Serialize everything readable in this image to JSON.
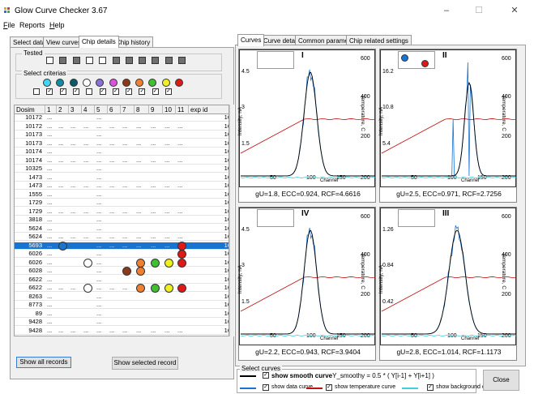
{
  "window": {
    "title": "Glow Curve Checker 3.67",
    "min": "–",
    "max": "☐",
    "close": "✕"
  },
  "menu": [
    {
      "key": "F",
      "rest": "ile"
    },
    {
      "key": "",
      "rest": "Reports"
    },
    {
      "key": "H",
      "rest": "elp"
    }
  ],
  "left_tabs": [
    "Select data",
    "View curves",
    "Chip details",
    "Chip history"
  ],
  "tested": {
    "label": "Tested",
    "states": [
      "empty",
      "filled",
      "filled",
      "empty",
      "empty",
      "filled",
      "filled",
      "filled",
      "filled",
      "filled",
      "filled"
    ]
  },
  "criteria": {
    "label": "Select criterias",
    "colors": [
      "#40d8f0",
      "#148aa4",
      "#0a5a6a",
      "#ffffff",
      "#8870d8",
      "#e050e0",
      "#8a3a1a",
      "#f08030",
      "#40c030",
      "#f0f020",
      "#e01818"
    ],
    "checked": [
      false,
      true,
      true,
      true,
      false,
      true,
      true,
      true,
      true,
      true,
      true
    ]
  },
  "table": {
    "columns": [
      "Dosim",
      "1",
      "2",
      "3",
      "4",
      "5",
      "6",
      "7",
      "8",
      "9",
      "10",
      "11",
      "exp id"
    ],
    "rows": [
      [
        "10172",
        "...",
        "",
        "",
        "",
        "...",
        "",
        "",
        "",
        "",
        "",
        "",
        "16"
      ],
      [
        "10172",
        "...",
        "...",
        "...",
        "...",
        "...",
        "...",
        "...",
        "...",
        "...",
        "...",
        "...",
        "16"
      ],
      [
        "10173",
        "...",
        "",
        "",
        "",
        "...",
        "",
        "",
        "",
        "",
        "",
        "",
        "16"
      ],
      [
        "10173",
        "...",
        "...",
        "...",
        "...",
        "...",
        "...",
        "...",
        "...",
        "...",
        "...",
        "...",
        "16"
      ],
      [
        "10174",
        "...",
        "",
        "",
        "",
        "...",
        "",
        "",
        "",
        "",
        "",
        "",
        "16"
      ],
      [
        "10174",
        "...",
        "...",
        "...",
        "...",
        "...",
        "...",
        "...",
        "...",
        "...",
        "...",
        "...",
        "16"
      ],
      [
        "10325",
        "...",
        "",
        "",
        "",
        "...",
        "",
        "",
        "",
        "",
        "",
        "",
        "16"
      ],
      [
        "1473",
        "...",
        "",
        "",
        "",
        "...",
        "",
        "",
        "",
        "",
        "",
        "",
        "16"
      ],
      [
        "1473",
        "...",
        "...",
        "...",
        "...",
        "...",
        "...",
        "...",
        "...",
        "...",
        "...",
        "...",
        "16"
      ],
      [
        "1555",
        "...",
        "",
        "",
        "",
        "...",
        "",
        "",
        "",
        "",
        "",
        "",
        "16"
      ],
      [
        "1729",
        "...",
        "",
        "",
        "",
        "...",
        "",
        "",
        "",
        "",
        "",
        "",
        "16"
      ],
      [
        "1729",
        "...",
        "...",
        "...",
        "...",
        "...",
        "...",
        "...",
        "...",
        "...",
        "...",
        "...",
        "16"
      ],
      [
        "3818",
        "...",
        "",
        "",
        "",
        "...",
        "",
        "",
        "",
        "",
        "",
        "",
        "16"
      ],
      [
        "5624",
        "...",
        "",
        "",
        "",
        "...",
        "",
        "",
        "",
        "",
        "",
        "",
        "16"
      ],
      [
        "5624",
        "...",
        "...",
        "...",
        "...",
        "...",
        "...",
        "...",
        "...",
        "...",
        "...",
        "...",
        "16"
      ],
      [
        "5693",
        "...",
        "",
        "",
        "",
        "...",
        "...",
        "...",
        "...",
        "...",
        "...",
        "",
        "16"
      ],
      [
        "6026",
        "...",
        "",
        "",
        "",
        "...",
        "",
        "",
        "",
        "",
        "",
        "",
        "16"
      ],
      [
        "6026",
        "...",
        "",
        "",
        "",
        "...",
        "",
        "",
        "",
        "",
        "",
        "",
        "16"
      ],
      [
        "6028",
        "...",
        "",
        "",
        "",
        "...",
        "",
        "",
        "",
        "",
        "",
        "",
        "16"
      ],
      [
        "6622",
        "...",
        "",
        "",
        "",
        "...",
        "",
        "",
        "",
        "",
        "",
        "",
        "16"
      ],
      [
        "6622",
        "...",
        "...",
        "...",
        "",
        "...",
        "...",
        "...",
        "",
        "",
        "",
        "",
        "16"
      ],
      [
        "8263",
        "...",
        "",
        "",
        "",
        "...",
        "",
        "",
        "",
        "",
        "",
        "",
        "16"
      ],
      [
        "8773",
        "...",
        "",
        "",
        "",
        "...",
        "",
        "",
        "",
        "",
        "",
        "",
        "16"
      ],
      [
        "89",
        "...",
        "",
        "",
        "",
        "...",
        "",
        "",
        "",
        "",
        "",
        "",
        "16"
      ],
      [
        "9428",
        "...",
        "",
        "",
        "",
        "...",
        "",
        "",
        "",
        "",
        "",
        "",
        "16"
      ],
      [
        "9428",
        "...",
        "...",
        "...",
        "...",
        "...",
        "...",
        "...",
        "...",
        "...",
        "...",
        "...",
        "16"
      ]
    ],
    "selected_row": 15,
    "markers": [
      {
        "row": 15,
        "col": 2,
        "color": "#1874d2"
      },
      {
        "row": 15,
        "col": 11,
        "color": "#e01818"
      },
      {
        "row": 16,
        "col": 11,
        "color": "#e01818"
      },
      {
        "row": 17,
        "col": 4,
        "color": "#ffffff"
      },
      {
        "row": 17,
        "col": 8,
        "color": "#f08030"
      },
      {
        "row": 17,
        "col": 9,
        "color": "#40c030"
      },
      {
        "row": 17,
        "col": 10,
        "color": "#f0f020"
      },
      {
        "row": 17,
        "col": 11,
        "color": "#e01818"
      },
      {
        "row": 18,
        "col": 7,
        "color": "#8a3a1a"
      },
      {
        "row": 18,
        "col": 8,
        "color": "#f08030"
      },
      {
        "row": 20,
        "col": 4,
        "color": "#ffffff"
      },
      {
        "row": 20,
        "col": 8,
        "color": "#f08030"
      },
      {
        "row": 20,
        "col": 9,
        "color": "#40c030"
      },
      {
        "row": 20,
        "col": 10,
        "color": "#f0f020"
      },
      {
        "row": 20,
        "col": 11,
        "color": "#e01818"
      }
    ]
  },
  "buttons": {
    "show_all": "Show all records",
    "show_selected": "Show selected record",
    "close": "Close"
  },
  "right_tabs": [
    "Curves",
    "Curve details",
    "Common parameters",
    "Chip related settings"
  ],
  "charts": [
    {
      "roman": "I",
      "caption": "gU=1.8,  ECC=0.924,  RCF=4.6616",
      "ylabels": [
        "4.5",
        "3",
        "1.5"
      ],
      "tlabels": [
        "600",
        "400",
        "200"
      ],
      "xticks": [
        "50",
        "100",
        "150",
        "200"
      ]
    },
    {
      "roman": "II",
      "caption": "gU=2.5,  ECC=0.971,  RCF=2.7256",
      "ylabels": [
        "16.2",
        "10.8",
        "5.4"
      ],
      "tlabels": [
        "600",
        "400",
        "200"
      ],
      "xticks": [
        "50",
        "100",
        "150",
        "200"
      ]
    },
    {
      "roman": "IV",
      "caption": "gU=2.2,  ECC=0.943,  RCF=3.9404",
      "ylabels": [
        "4.5",
        "3",
        "1.5"
      ],
      "tlabels": [
        "600",
        "400",
        "200"
      ],
      "xticks": [
        "50",
        "100",
        "150",
        "200"
      ]
    },
    {
      "roman": "III",
      "caption": "gU=2.8,  ECC=1.014,  RCF=1.1173",
      "ylabels": [
        "1.26",
        "0.84",
        "0.42"
      ],
      "tlabels": [
        "600",
        "400",
        "200"
      ],
      "xticks": [
        "50",
        "100",
        "150",
        "200"
      ]
    }
  ],
  "axis": {
    "y": "Intensity, nA",
    "temp": "Temperature, C",
    "x": "Channel"
  },
  "select_curves": {
    "label": "Select curves",
    "smooth": "show smooth curve",
    "formula": "Y_smoothy = 0.5 * ( Y[i-1] + Y[i+1] )",
    "data": "show data curve",
    "temperature": "show temperature curve",
    "background": "show background curve"
  }
}
